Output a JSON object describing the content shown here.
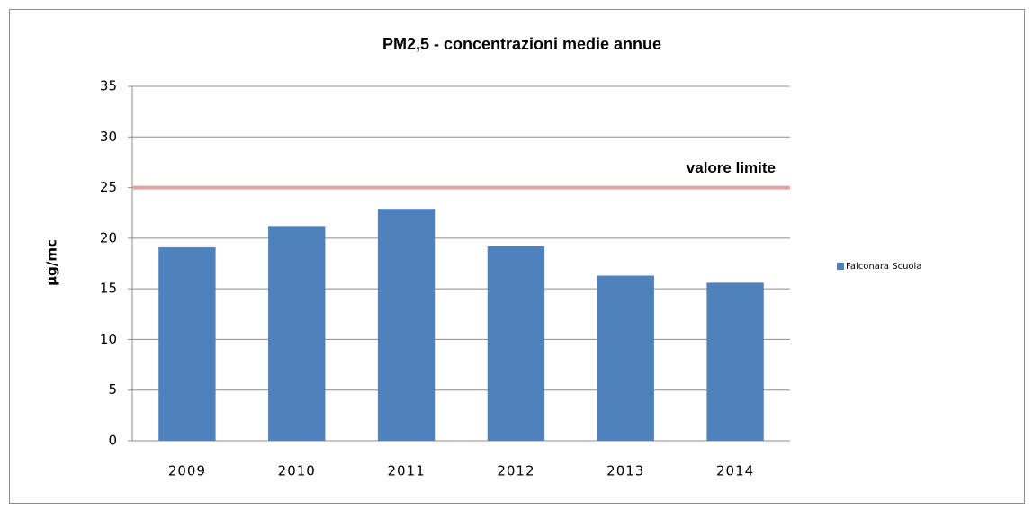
{
  "chart_data": {
    "type": "bar",
    "title": "PM2,5 - concentrazioni  medie annue",
    "y_label": "µg/mc",
    "categories": [
      "2009",
      "2010",
      "2011",
      "2012",
      "2013",
      "2014"
    ],
    "series": [
      {
        "name": "Falconara Scuola",
        "color": "#4f81bd",
        "values": [
          19.1,
          21.2,
          22.9,
          19.2,
          16.3,
          15.6
        ]
      }
    ],
    "reference_line": {
      "value": 25,
      "label": "valore limite",
      "color": "#e3a3a3"
    },
    "ylim": [
      0,
      35
    ],
    "yticks": [
      0,
      5,
      10,
      15,
      20,
      25,
      30,
      35
    ],
    "grid": true,
    "legend": "right"
  }
}
